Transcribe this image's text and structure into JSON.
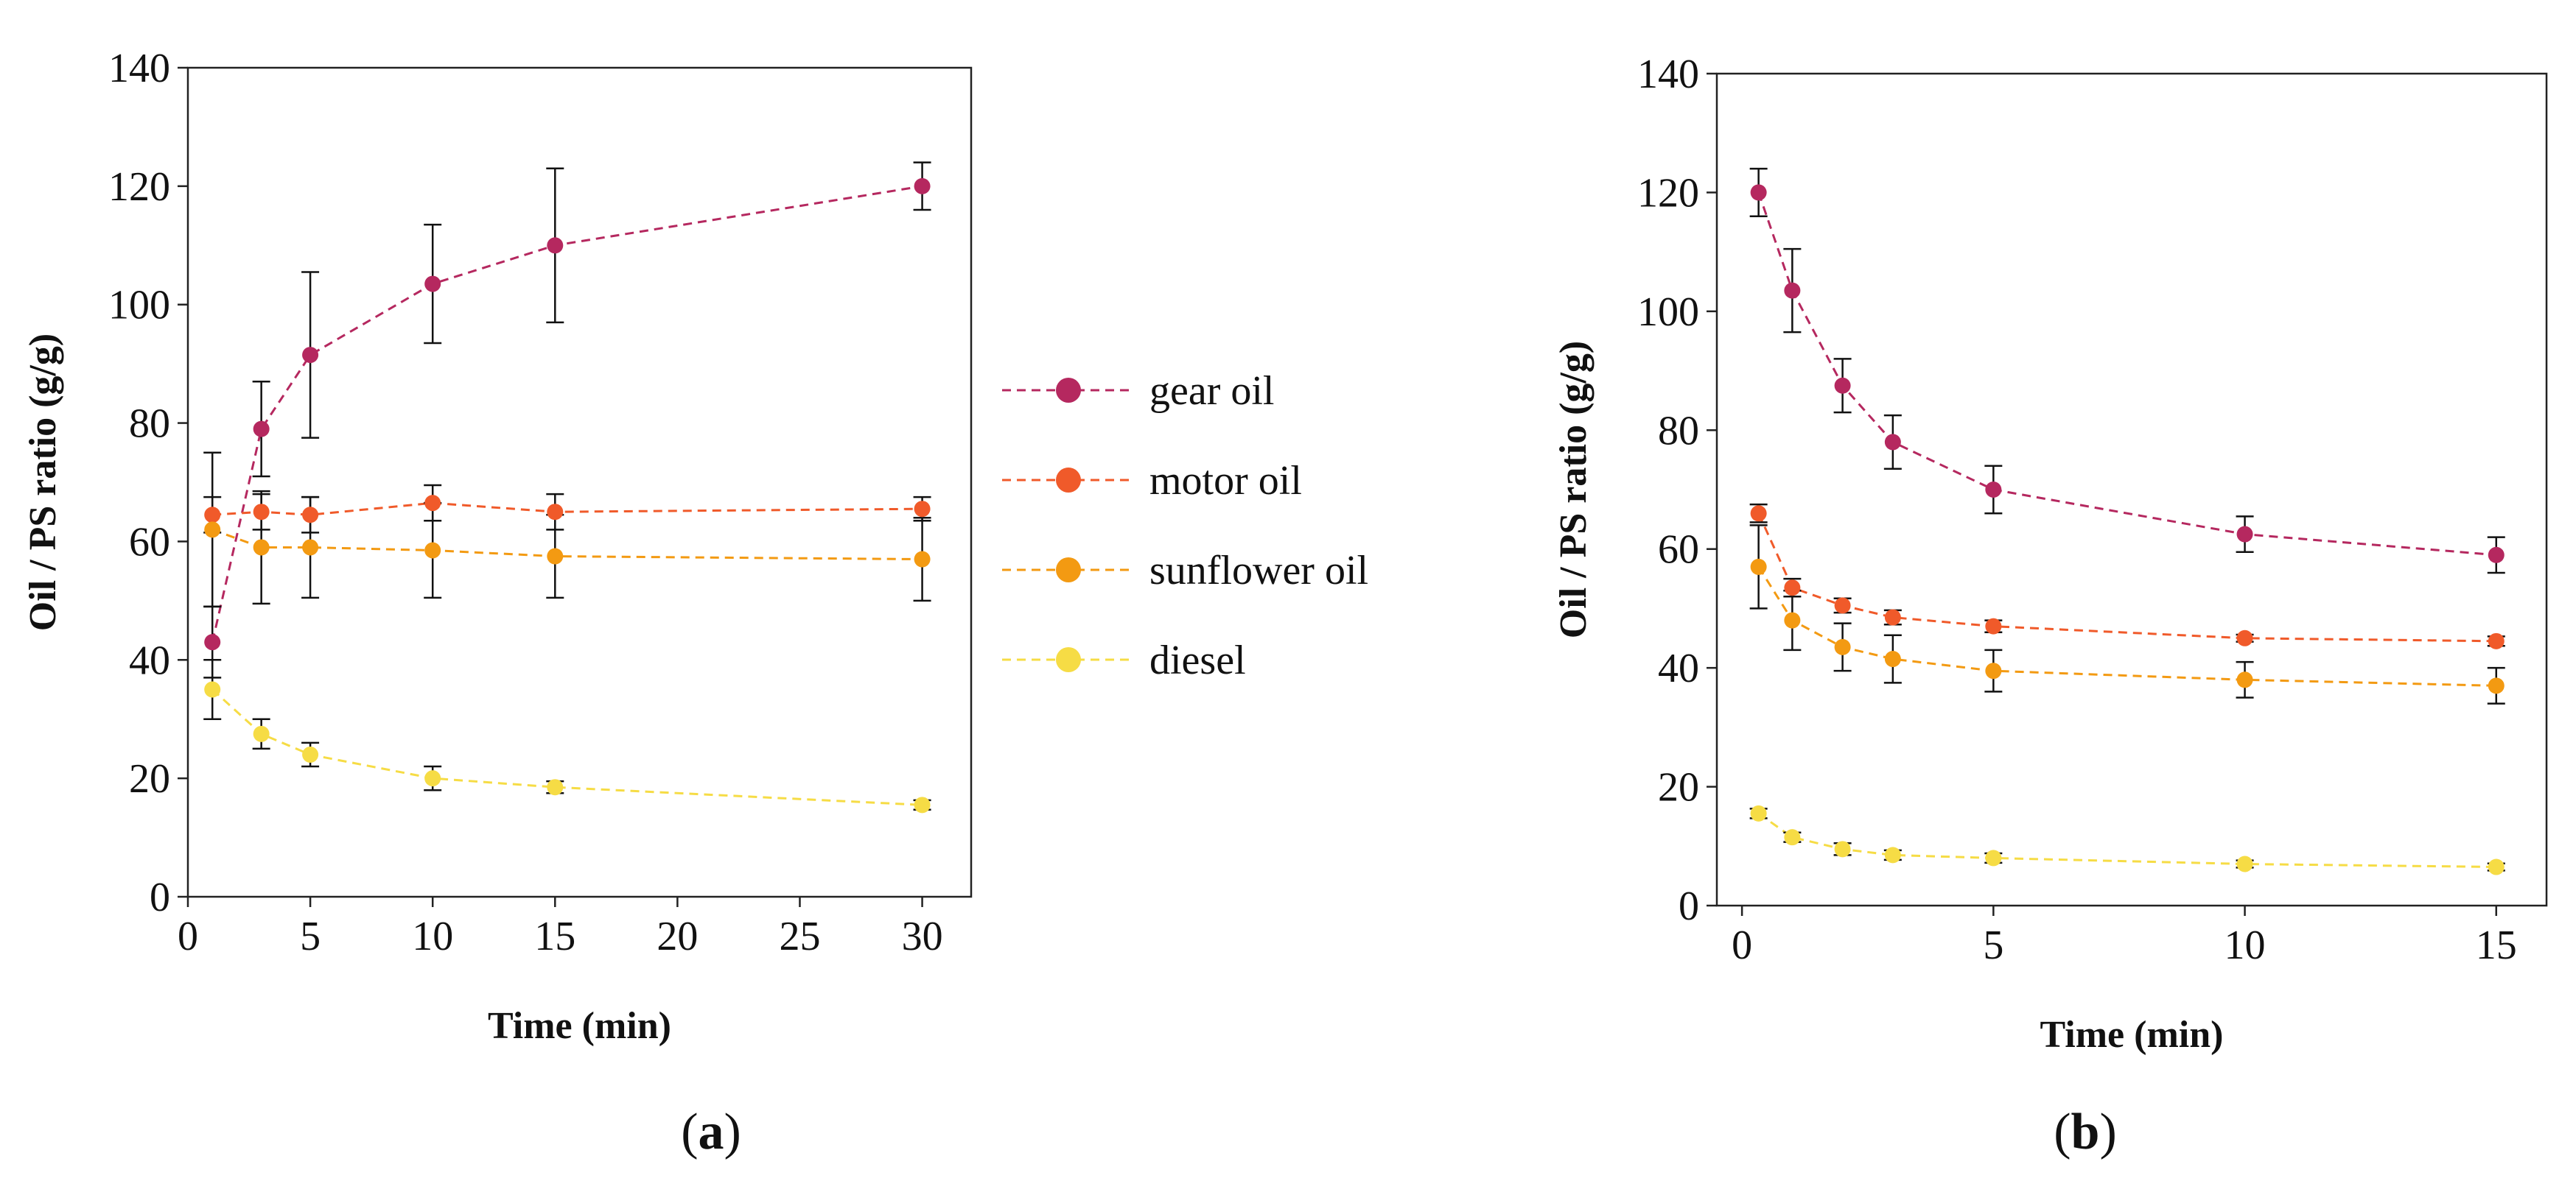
{
  "colors": {
    "gear_oil": "#b5285f",
    "motor_oil": "#f05a2a",
    "sunflower_oil": "#f39a12",
    "diesel": "#f6dc45",
    "axis": "#222222",
    "error_bar": "#111111"
  },
  "legend": {
    "items": [
      "gear oil",
      "motor oil",
      "sunflower oil",
      "diesel"
    ],
    "marker": "filled circle with dashed line"
  },
  "panel_labels": {
    "a": {
      "open": "(",
      "letter": "a",
      "close": ")"
    },
    "b": {
      "open": "(",
      "letter": "b",
      "close": ")"
    }
  },
  "chart_data": [
    {
      "id": "a",
      "type": "line",
      "xlabel": "Time (min)",
      "ylabel": "Oil / PS ratio (g/g)",
      "xlim": [
        0,
        32
      ],
      "ylim": [
        0,
        140
      ],
      "xticks": [
        0,
        5,
        10,
        15,
        20,
        25,
        30
      ],
      "yticks": [
        0,
        20,
        40,
        60,
        80,
        100,
        120,
        140
      ],
      "grid": false,
      "x": [
        1,
        3,
        5,
        10,
        15,
        30
      ],
      "series": [
        {
          "name": "gear oil",
          "color": "#b5285f",
          "values": [
            43,
            79,
            91.5,
            103.5,
            110,
            120
          ],
          "errors": [
            6,
            8,
            14,
            10,
            13,
            4
          ]
        },
        {
          "name": "motor oil",
          "color": "#f05a2a",
          "values": [
            64.5,
            65,
            64.5,
            66.5,
            65,
            65.5
          ],
          "errors": [
            3,
            3,
            3,
            3,
            3,
            2
          ]
        },
        {
          "name": "sunflower oil",
          "color": "#f39a12",
          "values": [
            62,
            59,
            59,
            58.5,
            57.5,
            57
          ],
          "errors": [
            13,
            9.5,
            8.5,
            8,
            7,
            7
          ]
        },
        {
          "name": "diesel",
          "color": "#f6dc45",
          "values": [
            35,
            27.5,
            24,
            20,
            18.5,
            15.5
          ],
          "errors": [
            5,
            2.5,
            2,
            2,
            1,
            0.8
          ]
        }
      ]
    },
    {
      "id": "b",
      "type": "line",
      "xlabel": "Time (min)",
      "ylabel": "Oil / PS ratio (g/g)",
      "xlim": [
        -0.5,
        16
      ],
      "ylim": [
        0,
        140
      ],
      "xticks": [
        0,
        5,
        10,
        15
      ],
      "yticks": [
        0,
        20,
        40,
        60,
        80,
        100,
        120,
        140
      ],
      "grid": false,
      "x": [
        0.33,
        1,
        2,
        3,
        5,
        10,
        15
      ],
      "series": [
        {
          "name": "gear oil",
          "color": "#b5285f",
          "values": [
            120,
            103.5,
            87.5,
            78,
            70,
            62.5,
            59
          ],
          "errors": [
            4,
            7,
            4.5,
            4.5,
            4,
            3,
            3
          ]
        },
        {
          "name": "motor oil",
          "color": "#f05a2a",
          "values": [
            66,
            53.5,
            50.5,
            48.5,
            47,
            45,
            44.5
          ],
          "errors": [
            1.5,
            1.5,
            1.2,
            1.2,
            1,
            0.6,
            0.8
          ]
        },
        {
          "name": "sunflower oil",
          "color": "#f39a12",
          "values": [
            57,
            48,
            43.5,
            41.5,
            39.5,
            38,
            37
          ],
          "errors": [
            7,
            5,
            4,
            4,
            3.5,
            3,
            3
          ]
        },
        {
          "name": "diesel",
          "color": "#f6dc45",
          "values": [
            15.5,
            11.5,
            9.5,
            8.5,
            8,
            7,
            6.5
          ],
          "errors": [
            0.8,
            0.8,
            1,
            0.8,
            0.8,
            0.6,
            0.6
          ]
        }
      ]
    }
  ]
}
